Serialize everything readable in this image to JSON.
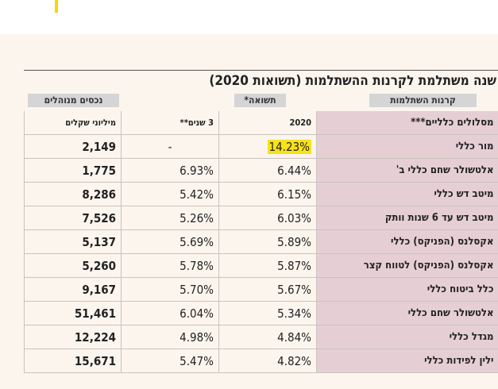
{
  "header": {
    "title": "שנה משתלמת לקרנות ההשתלמות (תשואות 2020)",
    "group_fund": "קרנות השתלמות",
    "group_return": "תשואה*",
    "group_assets": "נכסים מנוהלים"
  },
  "table": {
    "columns": [
      "מסלולים כלליים***",
      "2020",
      "3 שנים**",
      "מיליוני שקלים"
    ],
    "rows": [
      [
        "מור כללי",
        "14.23%",
        "-",
        "2,149"
      ],
      [
        "אלטשולר שחם כללי ב'",
        "6.44%",
        "6.93%",
        "1,775"
      ],
      [
        "מיטב דש כללי",
        "6.15%",
        "5.42%",
        "8,286"
      ],
      [
        "מיטב דש עד 6 שנות וותק",
        "6.03%",
        "5.26%",
        "7,526"
      ],
      [
        "אקסלנס (הפניקס) כללי",
        "5.89%",
        "5.69%",
        "5,137"
      ],
      [
        "אקסלנס (הפניקס) לטווח קצר",
        "5.87%",
        "5.78%",
        "5,260"
      ],
      [
        "כלל ביטוח כללי",
        "5.67%",
        "5.70%",
        "9,167"
      ],
      [
        "אלטשולר שחם כללי",
        "5.34%",
        "6.04%",
        "51,461"
      ],
      [
        "מגדל כללי",
        "4.84%",
        "4.98%",
        "12,224"
      ],
      [
        "ילין לפידות כללי",
        "4.82%",
        "5.47%",
        "15,671"
      ]
    ]
  }
}
